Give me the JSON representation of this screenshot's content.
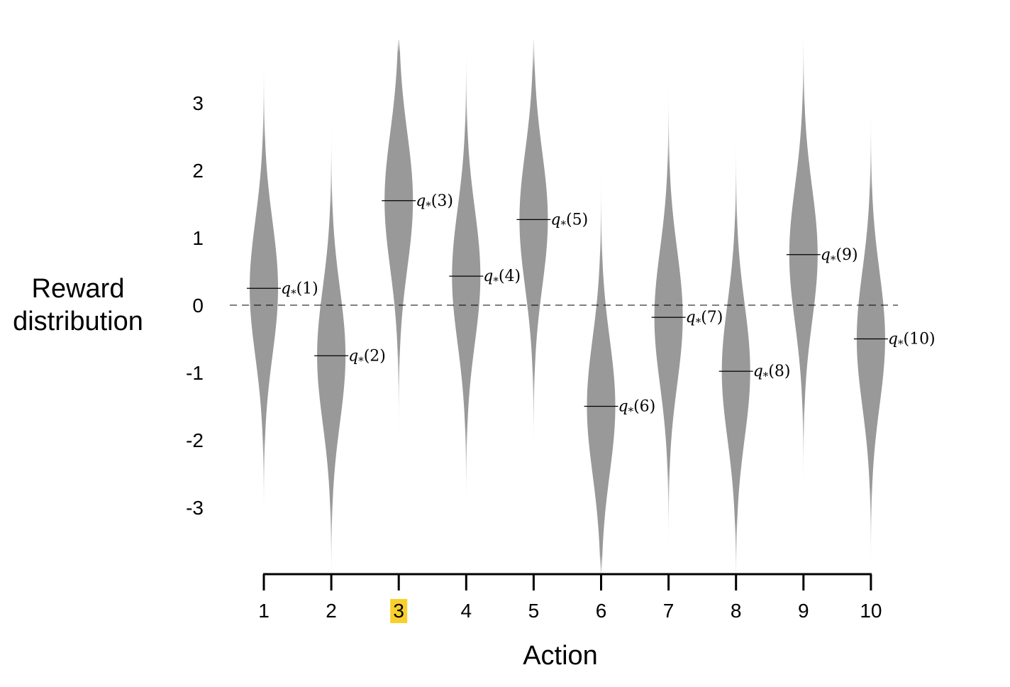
{
  "chart_data": {
    "type": "violin",
    "xlabel": "Action",
    "ylabel_lines": [
      "Reward",
      "distribution"
    ],
    "categories": [
      "1",
      "2",
      "3",
      "4",
      "5",
      "6",
      "7",
      "8",
      "9",
      "10"
    ],
    "highlight_category": "3",
    "highlight_color": "#f9d02b",
    "violin_color": "#999999",
    "ylim": [
      -4,
      4
    ],
    "yticks": [
      -3,
      -2,
      -1,
      0,
      1,
      2,
      3
    ],
    "reference_line": {
      "y": 0,
      "style": "dashed"
    },
    "label_prefix": "q",
    "label_subscript": "*",
    "means": [
      0.25,
      -0.75,
      1.55,
      0.43,
      1.27,
      -1.5,
      -0.18,
      -0.98,
      0.75,
      -0.5
    ],
    "labels": [
      "q*(1)",
      "q*(2)",
      "q*(3)",
      "q*(4)",
      "q*(5)",
      "q*(6)",
      "q*(7)",
      "q*(8)",
      "q*(9)",
      "q*(10)"
    ],
    "spread_sd": 1.0
  }
}
